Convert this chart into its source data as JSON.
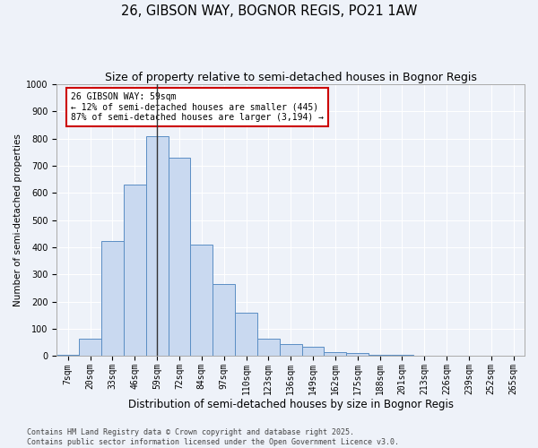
{
  "title": "26, GIBSON WAY, BOGNOR REGIS, PO21 1AW",
  "subtitle": "Size of property relative to semi-detached houses in Bognor Regis",
  "xlabel": "Distribution of semi-detached houses by size in Bognor Regis",
  "ylabel": "Number of semi-detached properties",
  "categories": [
    "7sqm",
    "20sqm",
    "33sqm",
    "46sqm",
    "59sqm",
    "72sqm",
    "84sqm",
    "97sqm",
    "110sqm",
    "123sqm",
    "136sqm",
    "149sqm",
    "162sqm",
    "175sqm",
    "188sqm",
    "201sqm",
    "213sqm",
    "226sqm",
    "239sqm",
    "252sqm",
    "265sqm"
  ],
  "values": [
    5,
    65,
    425,
    630,
    810,
    730,
    410,
    265,
    160,
    65,
    45,
    35,
    15,
    13,
    5,
    5,
    2,
    0,
    0,
    0,
    0
  ],
  "bar_color": "#c9d9f0",
  "bar_edge_color": "#5b8ec4",
  "property_line_x": 4,
  "annotation_title": "26 GIBSON WAY: 59sqm",
  "annotation_line1": "← 12% of semi-detached houses are smaller (445)",
  "annotation_line2": "87% of semi-detached houses are larger (3,194) →",
  "annotation_box_color": "#ffffff",
  "annotation_box_edge": "#cc0000",
  "vline_color": "#333333",
  "ylim": [
    0,
    1000
  ],
  "yticks": [
    0,
    100,
    200,
    300,
    400,
    500,
    600,
    700,
    800,
    900,
    1000
  ],
  "bg_color": "#eef2f9",
  "footer_line1": "Contains HM Land Registry data © Crown copyright and database right 2025.",
  "footer_line2": "Contains public sector information licensed under the Open Government Licence v3.0.",
  "title_fontsize": 10.5,
  "subtitle_fontsize": 9,
  "xlabel_fontsize": 8.5,
  "ylabel_fontsize": 7.5,
  "tick_fontsize": 7,
  "footer_fontsize": 6,
  "annotation_fontsize": 7
}
